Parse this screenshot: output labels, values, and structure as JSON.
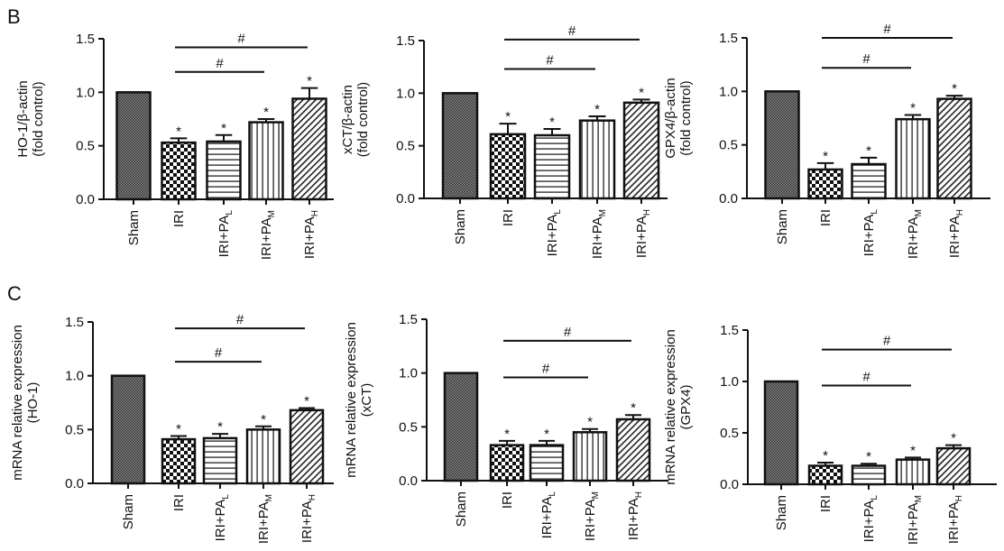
{
  "panel_labels": [
    "B",
    "C"
  ],
  "chart_data": [
    {
      "panel": "B",
      "type": "bar",
      "ylabel": [
        "HO-1/β-actin",
        "(fold control)"
      ],
      "ylim": [
        0,
        1.5
      ],
      "yticks": [
        "0.0",
        "0.5",
        "1.0",
        "1.5"
      ],
      "categories": [
        {
          "text": "Sham",
          "sub": ""
        },
        {
          "text": "IRI",
          "sub": ""
        },
        {
          "text": "IRI+PA",
          "sub": "L"
        },
        {
          "text": "IRI+PA",
          "sub": "M"
        },
        {
          "text": "IRI+PA",
          "sub": "H"
        }
      ],
      "values": [
        1.0,
        0.53,
        0.54,
        0.72,
        0.94
      ],
      "errors": [
        0,
        0.04,
        0.06,
        0.03,
        0.1
      ],
      "stars": [
        "",
        "*",
        "*",
        "*",
        "*"
      ],
      "brackets": [
        {
          "from": 1,
          "to": 4,
          "height": 1.42,
          "label": "#"
        },
        {
          "from": 1,
          "to": 3,
          "height": 1.19,
          "label": "#"
        }
      ]
    },
    {
      "panel": "B",
      "type": "bar",
      "ylabel": [
        "xCT/β-actin",
        "(fold control)"
      ],
      "ylim": [
        0,
        1.5
      ],
      "yticks": [
        "0.0",
        "0.5",
        "1.0",
        "1.5"
      ],
      "categories": [
        {
          "text": "Sham",
          "sub": ""
        },
        {
          "text": "IRI",
          "sub": ""
        },
        {
          "text": "IRI+PA",
          "sub": "L"
        },
        {
          "text": "IRI+PA",
          "sub": "M"
        },
        {
          "text": "IRI+PA",
          "sub": "H"
        }
      ],
      "values": [
        1.0,
        0.61,
        0.6,
        0.74,
        0.91
      ],
      "errors": [
        0,
        0.1,
        0.06,
        0.04,
        0.03
      ],
      "stars": [
        "",
        "*",
        "*",
        "*",
        "*"
      ],
      "brackets": [
        {
          "from": 1,
          "to": 4,
          "height": 1.51,
          "label": "#"
        },
        {
          "from": 1,
          "to": 3,
          "height": 1.23,
          "label": "#"
        }
      ]
    },
    {
      "panel": "B",
      "type": "bar",
      "ylabel": [
        "GPX4/β-actin",
        "(fold control)"
      ],
      "ylim": [
        0,
        1.5
      ],
      "yticks": [
        "0.0",
        "0.5",
        "1.0",
        "1.5"
      ],
      "categories": [
        {
          "text": "Sham",
          "sub": ""
        },
        {
          "text": "IRI",
          "sub": ""
        },
        {
          "text": "IRI+PA",
          "sub": "L"
        },
        {
          "text": "IRI+PA",
          "sub": "M"
        },
        {
          "text": "IRI+PA",
          "sub": "H"
        }
      ],
      "values": [
        1.0,
        0.27,
        0.32,
        0.74,
        0.93
      ],
      "errors": [
        0,
        0.06,
        0.06,
        0.04,
        0.03
      ],
      "stars": [
        "",
        "*",
        "*",
        "*",
        "*"
      ],
      "brackets": [
        {
          "from": 1,
          "to": 4,
          "height": 1.5,
          "label": "#"
        },
        {
          "from": 1,
          "to": 3,
          "height": 1.22,
          "label": "#"
        }
      ]
    },
    {
      "panel": "C",
      "type": "bar",
      "ylabel": [
        "mRNA relative expression",
        "(HO-1)"
      ],
      "ylim": [
        0,
        1.5
      ],
      "yticks": [
        "0.0",
        "0.5",
        "1.0",
        "1.5"
      ],
      "categories": [
        {
          "text": "Sham",
          "sub": ""
        },
        {
          "text": "IRI",
          "sub": ""
        },
        {
          "text": "IRI+PA",
          "sub": "L"
        },
        {
          "text": "IRI+PA",
          "sub": "M"
        },
        {
          "text": "IRI+PA",
          "sub": "H"
        }
      ],
      "values": [
        1.0,
        0.41,
        0.42,
        0.5,
        0.68
      ],
      "errors": [
        0,
        0.03,
        0.04,
        0.03,
        0.02
      ],
      "stars": [
        "",
        "*",
        "*",
        "*",
        "*"
      ],
      "brackets": [
        {
          "from": 1,
          "to": 4,
          "height": 1.44,
          "label": "#"
        },
        {
          "from": 1,
          "to": 3,
          "height": 1.13,
          "label": "#"
        }
      ]
    },
    {
      "panel": "C",
      "type": "bar",
      "ylabel": [
        "mRNA relative expression",
        "(xCT)"
      ],
      "ylim": [
        0,
        1.5
      ],
      "yticks": [
        "0.0",
        "0.5",
        "1.0",
        "1.5"
      ],
      "categories": [
        {
          "text": "Sham",
          "sub": ""
        },
        {
          "text": "IRI",
          "sub": ""
        },
        {
          "text": "IRI+PA",
          "sub": "L"
        },
        {
          "text": "IRI+PA",
          "sub": "M"
        },
        {
          "text": "IRI+PA",
          "sub": "H"
        }
      ],
      "values": [
        1.0,
        0.33,
        0.33,
        0.45,
        0.57
      ],
      "errors": [
        0,
        0.04,
        0.04,
        0.03,
        0.04
      ],
      "stars": [
        "",
        "*",
        "*",
        "*",
        "*"
      ],
      "brackets": [
        {
          "from": 1,
          "to": 4,
          "height": 1.3,
          "label": "#"
        },
        {
          "from": 1,
          "to": 3,
          "height": 0.96,
          "label": "#"
        }
      ]
    },
    {
      "panel": "C",
      "type": "bar",
      "ylabel": [
        "mRNA relative expression",
        "(GPX4)"
      ],
      "ylim": [
        0,
        1.5
      ],
      "yticks": [
        "0.0",
        "0.5",
        "1.0",
        "1.5"
      ],
      "categories": [
        {
          "text": "Sham",
          "sub": ""
        },
        {
          "text": "IRI",
          "sub": ""
        },
        {
          "text": "IRI+PA",
          "sub": "L"
        },
        {
          "text": "IRI+PA",
          "sub": "M"
        },
        {
          "text": "IRI+PA",
          "sub": "H"
        }
      ],
      "values": [
        1.0,
        0.18,
        0.18,
        0.24,
        0.35
      ],
      "errors": [
        0,
        0.03,
        0.02,
        0.02,
        0.03
      ],
      "stars": [
        "",
        "*",
        "*",
        "*",
        "*"
      ],
      "brackets": [
        {
          "from": 1,
          "to": 4,
          "height": 1.31,
          "label": "#"
        },
        {
          "from": 1,
          "to": 3,
          "height": 0.96,
          "label": "#"
        }
      ]
    }
  ],
  "bar_patterns": [
    "dense-crosshatch",
    "checkerboard",
    "horizontal-lines",
    "vertical-lines",
    "diagonal-lines"
  ],
  "colors": {
    "ink": "#111111",
    "sham_fill": "#555555"
  }
}
